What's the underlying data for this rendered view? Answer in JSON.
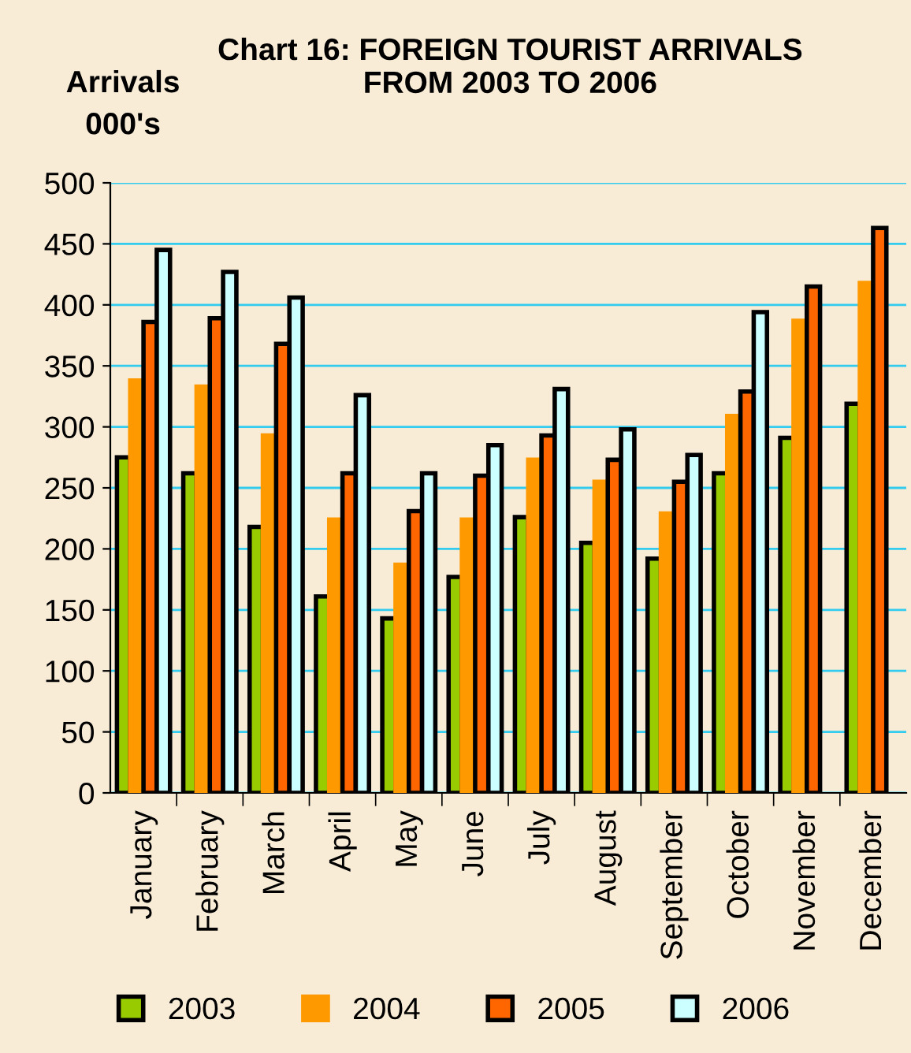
{
  "chart_data": {
    "type": "bar",
    "title": "Chart 16: FOREIGN TOURIST ARRIVALS\nFROM 2003 TO 2006",
    "ylabel": "Arrivals\n000's",
    "categories": [
      "January",
      "February",
      "March",
      "April",
      "May",
      "June",
      "July",
      "August",
      "September",
      "October",
      "November",
      "December"
    ],
    "series": [
      {
        "name": "2003",
        "color": "#99cc00",
        "values": [
          275,
          262,
          218,
          161,
          143,
          177,
          226,
          205,
          192,
          262,
          291,
          319
        ]
      },
      {
        "name": "2004",
        "color": "#ff9900",
        "values": [
          338,
          333,
          293,
          224,
          187,
          224,
          273,
          255,
          229,
          309,
          387,
          418
        ]
      },
      {
        "name": "2005",
        "color": "#ff6600",
        "values": [
          386,
          389,
          368,
          262,
          231,
          260,
          293,
          273,
          255,
          329,
          415,
          463
        ]
      },
      {
        "name": "2006",
        "color": "#ccffff",
        "values": [
          445,
          427,
          406,
          326,
          262,
          285,
          331,
          298,
          277,
          394,
          null,
          null
        ]
      }
    ],
    "ylim": [
      0,
      500
    ],
    "yticks": [
      0,
      50,
      100,
      150,
      200,
      250,
      300,
      350,
      400,
      450,
      500
    ],
    "grid": "y",
    "legend": "bottom"
  }
}
